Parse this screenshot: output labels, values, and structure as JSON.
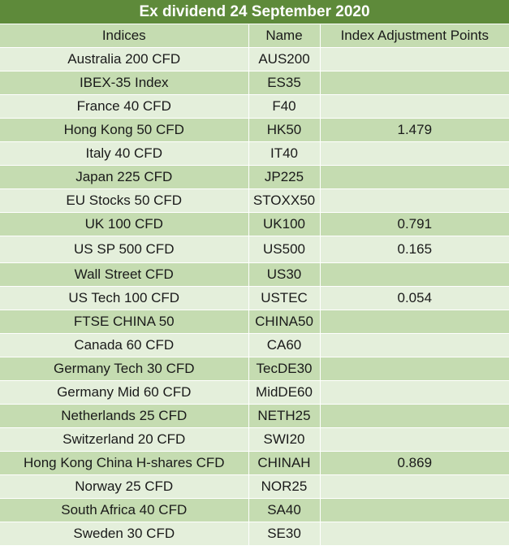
{
  "title": "Ex dividend 24 September 2020",
  "columns": [
    "Indices",
    "Name",
    "Index Adjustment Points"
  ],
  "rows": [
    {
      "index": "Australia 200 CFD",
      "name": "AUS200",
      "points": ""
    },
    {
      "index": "IBEX-35 Index",
      "name": "ES35",
      "points": ""
    },
    {
      "index": "France 40 CFD",
      "name": "F40",
      "points": ""
    },
    {
      "index": "Hong Kong 50 CFD",
      "name": "HK50",
      "points": "1.479"
    },
    {
      "index": "Italy 40 CFD",
      "name": "IT40",
      "points": ""
    },
    {
      "index": "Japan 225 CFD",
      "name": "JP225",
      "points": ""
    },
    {
      "index": "EU Stocks 50 CFD",
      "name": "STOXX50",
      "points": ""
    },
    {
      "index": "UK 100 CFD",
      "name": "UK100",
      "points": "0.791"
    },
    {
      "index": "US SP 500 CFD",
      "name": "US500",
      "points": "0.165"
    },
    {
      "index": "Wall Street CFD",
      "name": "US30",
      "points": ""
    },
    {
      "index": "US Tech 100 CFD",
      "name": "USTEC",
      "points": "0.054"
    },
    {
      "index": "FTSE CHINA 50",
      "name": "CHINA50",
      "points": ""
    },
    {
      "index": "Canada 60 CFD",
      "name": "CA60",
      "points": ""
    },
    {
      "index": "Germany Tech 30 CFD",
      "name": "TecDE30",
      "points": ""
    },
    {
      "index": "Germany Mid 60 CFD",
      "name": "MidDE60",
      "points": ""
    },
    {
      "index": "Netherlands 25 CFD",
      "name": "NETH25",
      "points": ""
    },
    {
      "index": "Switzerland 20 CFD",
      "name": "SWI20",
      "points": ""
    },
    {
      "index": "Hong Kong China H-shares CFD",
      "name": "CHINAH",
      "points": "0.869"
    },
    {
      "index": "Norway 25 CFD",
      "name": "NOR25",
      "points": ""
    },
    {
      "index": "South Africa 40 CFD",
      "name": "SA40",
      "points": ""
    },
    {
      "index": "Sweden 30 CFD",
      "name": "SE30",
      "points": ""
    }
  ]
}
